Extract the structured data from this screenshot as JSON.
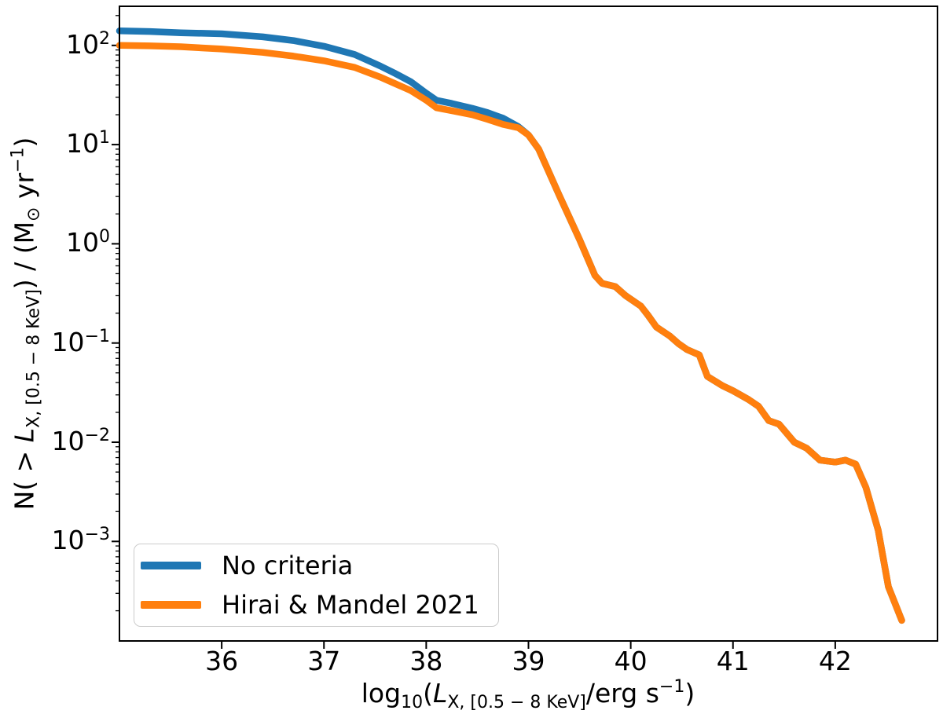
{
  "figure": {
    "background": "#ffffff",
    "frame_color": "#000000"
  },
  "chart_data": {
    "type": "line",
    "title": "",
    "grid": false,
    "x_axis": {
      "scale": "linear",
      "lim": [
        35.0,
        43.0
      ],
      "tick_values": [
        36,
        37,
        38,
        39,
        40,
        41,
        42
      ],
      "ticks": [
        "36",
        "37",
        "38",
        "39",
        "40",
        "41",
        "42"
      ],
      "label_segments": [
        {
          "t": "log",
          "s": "n"
        },
        {
          "t": "10",
          "s": "sub"
        },
        {
          "t": "(",
          "s": "n"
        },
        {
          "t": "L",
          "s": "i"
        },
        {
          "t": "X, [0.5 − 8 KeV]",
          "s": "sub"
        },
        {
          "t": "/erg s",
          "s": "n"
        },
        {
          "t": "−1",
          "s": "sup"
        },
        {
          "t": ")",
          "s": "n"
        }
      ]
    },
    "y_axis": {
      "scale": "log",
      "lim_log10": [
        -3.98,
        2.394
      ],
      "tick_base": "10",
      "tick_exponents": [
        "2",
        "1",
        "0",
        "−1",
        "−2",
        "−3"
      ],
      "tick_exponent_values": [
        2,
        1,
        0,
        -1,
        -2,
        -3
      ],
      "label_segments": [
        {
          "t": "N( > ",
          "s": "n"
        },
        {
          "t": "L",
          "s": "i"
        },
        {
          "t": "X, [0.5 − 8 KeV]",
          "s": "sub"
        },
        {
          "t": ") / (M",
          "s": "n"
        },
        {
          "t": "⊙",
          "s": "sub"
        },
        {
          "t": " yr",
          "s": "n"
        },
        {
          "t": "−1",
          "s": "sup"
        },
        {
          "t": ")",
          "s": "n"
        }
      ]
    },
    "legend": {
      "position": "lower left",
      "entries": [
        {
          "label": "No criteria",
          "color": "#1f77b4"
        },
        {
          "label": "Hirai & Mandel 2021",
          "color": "#ff7f0e"
        }
      ]
    },
    "series": [
      {
        "name": "No criteria",
        "color": "#1f77b4",
        "line_width": 8.5,
        "x": [
          35.0,
          35.3,
          35.6,
          36.0,
          36.4,
          36.7,
          37.0,
          37.3,
          37.55,
          37.7,
          37.85,
          38.0,
          38.1,
          38.25,
          38.45,
          38.6,
          38.75,
          38.9,
          39.0,
          39.1,
          39.15,
          39.3,
          39.5,
          39.65,
          39.72,
          39.85,
          39.95,
          40.1,
          40.17,
          40.25,
          40.38,
          40.47,
          40.55,
          40.67,
          40.75,
          40.9,
          41.0,
          41.15,
          41.25,
          41.35,
          41.45,
          41.6,
          41.72,
          41.85,
          42.0,
          42.1,
          42.2,
          42.3,
          42.42,
          42.52,
          42.65
        ],
        "y": [
          140,
          138,
          134,
          131,
          122,
          112,
          98,
          81,
          62,
          52,
          43,
          33,
          28,
          26,
          23.2,
          21,
          18.5,
          15.2,
          12.5,
          9.0,
          6.9,
          3.1,
          1.1,
          0.48,
          0.4,
          0.37,
          0.3,
          0.235,
          0.19,
          0.145,
          0.118,
          0.098,
          0.086,
          0.076,
          0.046,
          0.037,
          0.033,
          0.027,
          0.023,
          0.0165,
          0.0152,
          0.01,
          0.0087,
          0.0066,
          0.0063,
          0.0066,
          0.006,
          0.0035,
          0.0013,
          0.00035,
          0.00016
        ]
      },
      {
        "name": "Hirai & Mandel 2021",
        "color": "#ff7f0e",
        "line_width": 8.5,
        "x": [
          35.0,
          35.3,
          35.6,
          36.0,
          36.4,
          36.7,
          37.0,
          37.3,
          37.55,
          37.7,
          37.85,
          38.0,
          38.1,
          38.25,
          38.45,
          38.6,
          38.75,
          38.9,
          39.0,
          39.1,
          39.15,
          39.3,
          39.5,
          39.65,
          39.72,
          39.85,
          39.95,
          40.1,
          40.17,
          40.25,
          40.38,
          40.47,
          40.55,
          40.67,
          40.75,
          40.9,
          41.0,
          41.15,
          41.25,
          41.35,
          41.45,
          41.6,
          41.72,
          41.85,
          42.0,
          42.1,
          42.2,
          42.3,
          42.42,
          42.52,
          42.65
        ],
        "y": [
          100,
          99,
          97,
          92,
          85,
          78,
          70,
          60,
          48,
          41,
          35,
          28,
          23.5,
          22,
          20,
          18,
          16,
          14.8,
          12.5,
          9.0,
          6.9,
          3.1,
          1.1,
          0.48,
          0.4,
          0.37,
          0.3,
          0.235,
          0.19,
          0.145,
          0.118,
          0.098,
          0.086,
          0.076,
          0.046,
          0.037,
          0.033,
          0.027,
          0.023,
          0.0165,
          0.0152,
          0.01,
          0.0087,
          0.0066,
          0.0063,
          0.0066,
          0.006,
          0.0035,
          0.0013,
          0.00035,
          0.00016
        ]
      }
    ]
  }
}
